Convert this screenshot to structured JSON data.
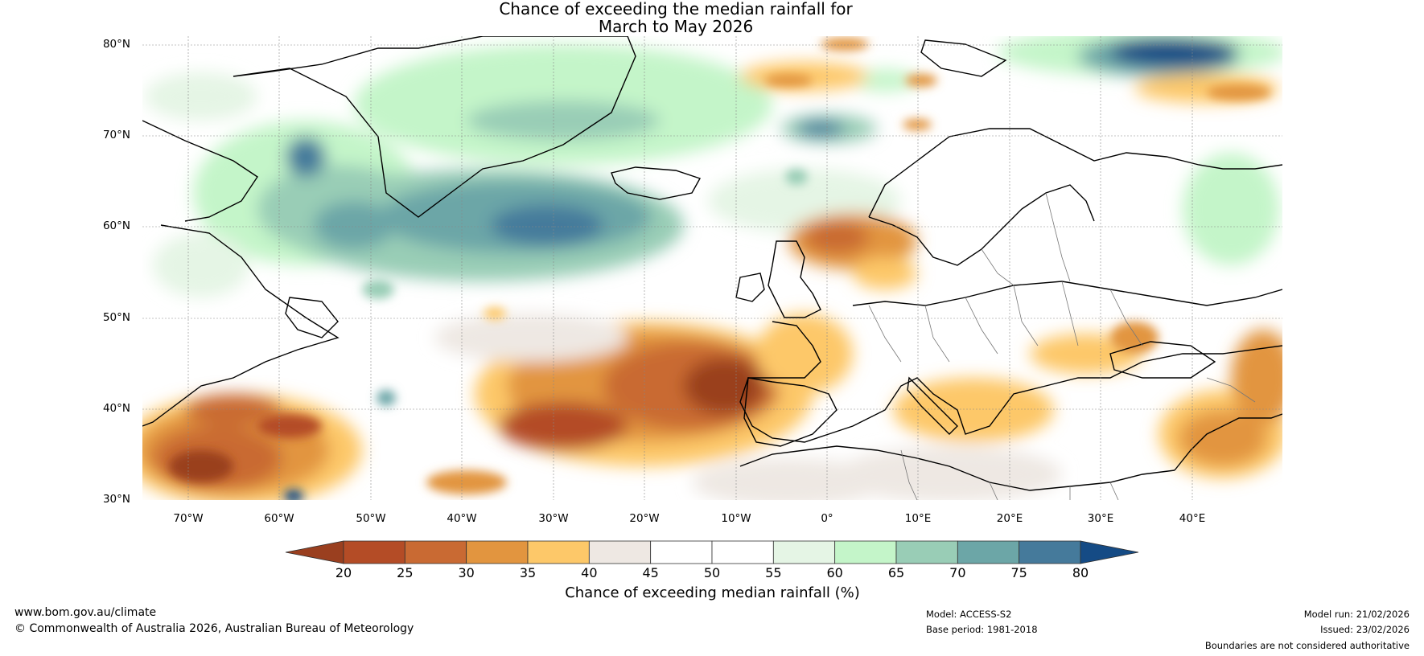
{
  "title": {
    "line1": "Chance of exceeding the median rainfall for",
    "line2": "March to May 2026"
  },
  "map": {
    "region": "North Atlantic and Europe",
    "lat_labels": [
      "80°N",
      "70°N",
      "60°N",
      "50°N",
      "40°N",
      "30°N"
    ],
    "lon_labels": [
      "70°W",
      "60°W",
      "50°W",
      "40°W",
      "30°W",
      "20°W",
      "10°W",
      "0°",
      "10°E",
      "20°E",
      "30°E",
      "40°E"
    ],
    "lat_values": [
      80,
      70,
      60,
      50,
      40,
      30
    ],
    "lon_values": [
      -70,
      -60,
      -50,
      -40,
      -30,
      -20,
      -10,
      0,
      10,
      20,
      30,
      40
    ],
    "extent": {
      "lon_min": -75,
      "lon_max": 50,
      "lat_min": 30,
      "lat_max": 81
    }
  },
  "colorbar": {
    "label": "Chance of exceeding median rainfall (%)",
    "ticks": [
      "20",
      "25",
      "30",
      "35",
      "40",
      "45",
      "50",
      "55",
      "60",
      "65",
      "70",
      "75",
      "80"
    ],
    "colors": [
      "#9a3f1f",
      "#b44c26",
      "#c96a33",
      "#e2953f",
      "#fdc869",
      "#eee8e3",
      "#ffffff",
      "#ffffff",
      "#e5f5e5",
      "#c4f5c9",
      "#99cdb6",
      "#6ca6a7",
      "#457a9b",
      "#154b85"
    ],
    "low_label": "",
    "high_label": ""
  },
  "footer": {
    "website": "www.bom.gov.au/climate",
    "copyright": "© Commonwealth of Australia 2026, Australian Bureau of Meteorology",
    "model": "Model: ACCESS-S2",
    "base_period": "Base period: 1981-2018",
    "model_run": "Model run: 21/02/2026",
    "issued": "Issued: 23/02/2026",
    "disclaimer": "Boundaries are not considered authoritative"
  }
}
